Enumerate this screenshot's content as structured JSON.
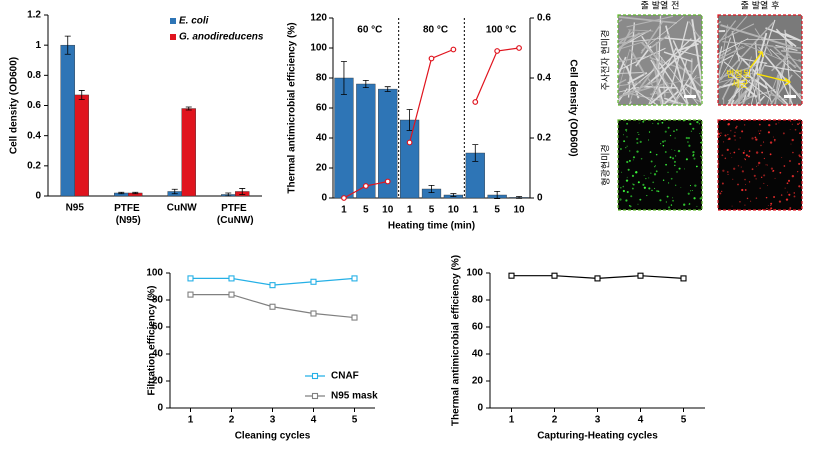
{
  "chart_data": [
    {
      "type": "bar",
      "ylabel": "Cell density (OD600)",
      "categories": [
        "N95",
        "PTFE (N95)",
        "CuNW",
        "PTFE (CuNW)"
      ],
      "series": [
        {
          "name": "E. coli",
          "color": "#2e75b6",
          "values": [
            1.0,
            0.02,
            0.03,
            0.01
          ],
          "errors": [
            0.06,
            0.005,
            0.015,
            0.01
          ]
        },
        {
          "name": "G. anodireducens",
          "color": "#e0141e",
          "values": [
            0.67,
            0.02,
            0.58,
            0.03
          ],
          "errors": [
            0.03,
            0.005,
            0.01,
            0.02
          ]
        }
      ],
      "ylim": [
        0,
        1.2
      ],
      "yticks": [
        0,
        0.2,
        0.4,
        0.6,
        0.8,
        1,
        1.2
      ]
    },
    {
      "type": "bar-line",
      "ylabel": "Thermal antimicrobial efficiency (%)",
      "y2label": "Cell density (OD600)",
      "xlabel": "Heating time (min)",
      "ylim": [
        0,
        120
      ],
      "yticks": [
        0,
        20,
        40,
        60,
        80,
        100,
        120
      ],
      "y2lim": [
        0,
        0.6
      ],
      "y2ticks": [
        0,
        0.2,
        0.4,
        0.6
      ],
      "panels": [
        {
          "label": "60 °C",
          "categories": [
            "1",
            "5",
            "10"
          ],
          "series": [
            {
              "type": "bar",
              "axis": "y2",
              "color": "#2e75b6",
              "values": [
                0.4,
                0.38,
                0.363
              ],
              "errors": [
                0.055,
                0.012,
                0.008
              ]
            },
            {
              "type": "line",
              "color": "#e0141e",
              "values": [
                0,
                8,
                11
              ]
            }
          ]
        },
        {
          "label": "80 °C",
          "categories": [
            "1",
            "5",
            "10"
          ],
          "series": [
            {
              "type": "bar",
              "axis": "y2",
              "color": "#2e75b6",
              "values": [
                0.26,
                0.03,
                0.01
              ],
              "errors": [
                0.035,
                0.012,
                0.005
              ]
            },
            {
              "type": "line",
              "color": "#e0141e",
              "values": [
                37,
                93,
                99
              ]
            }
          ]
        },
        {
          "label": "100 °C",
          "categories": [
            "1",
            "5",
            "10"
          ],
          "series": [
            {
              "type": "bar",
              "axis": "y2",
              "color": "#2e75b6",
              "values": [
                0.15,
                0.01,
                0.002
              ],
              "errors": [
                0.028,
                0.012,
                0.003
              ]
            },
            {
              "type": "line",
              "color": "#e0141e",
              "values": [
                64,
                98,
                100
              ]
            }
          ]
        }
      ]
    },
    {
      "type": "line",
      "ylabel": "Filtration efficiency (%)",
      "xlabel": "Cleaning cycles",
      "x": [
        1,
        2,
        3,
        4,
        5
      ],
      "xlim": [
        0.5,
        5.5
      ],
      "xticks": [
        1,
        2,
        3,
        4,
        5
      ],
      "ylim": [
        0,
        100
      ],
      "yticks": [
        0,
        20,
        40,
        60,
        80,
        100
      ],
      "legend": "lower right",
      "series": [
        {
          "name": "CNAF",
          "color": "#25b0e6",
          "values": [
            96,
            96,
            91,
            93.5,
            96
          ]
        },
        {
          "name": "N95 mask",
          "color": "#808080",
          "values": [
            84,
            84,
            75,
            70,
            67
          ]
        }
      ]
    },
    {
      "type": "line",
      "ylabel": "Thermal antimicrobial efficiency (%)",
      "xlabel": "Capturing-Heating cycles",
      "x": [
        1,
        2,
        3,
        4,
        5
      ],
      "xlim": [
        0.5,
        5.5
      ],
      "xticks": [
        1,
        2,
        3,
        4,
        5
      ],
      "ylim": [
        0,
        100
      ],
      "yticks": [
        0,
        20,
        40,
        60,
        80,
        100
      ],
      "series": [
        {
          "color": "#000000",
          "values": [
            98,
            98,
            96,
            98,
            96
          ]
        }
      ]
    }
  ],
  "micrographs": {
    "columns": [
      "줄 발열 전",
      "줄 발열 후"
    ],
    "rows": [
      "주사전자 현미경",
      "형광현미경"
    ],
    "annotation": "변형된 세균"
  }
}
